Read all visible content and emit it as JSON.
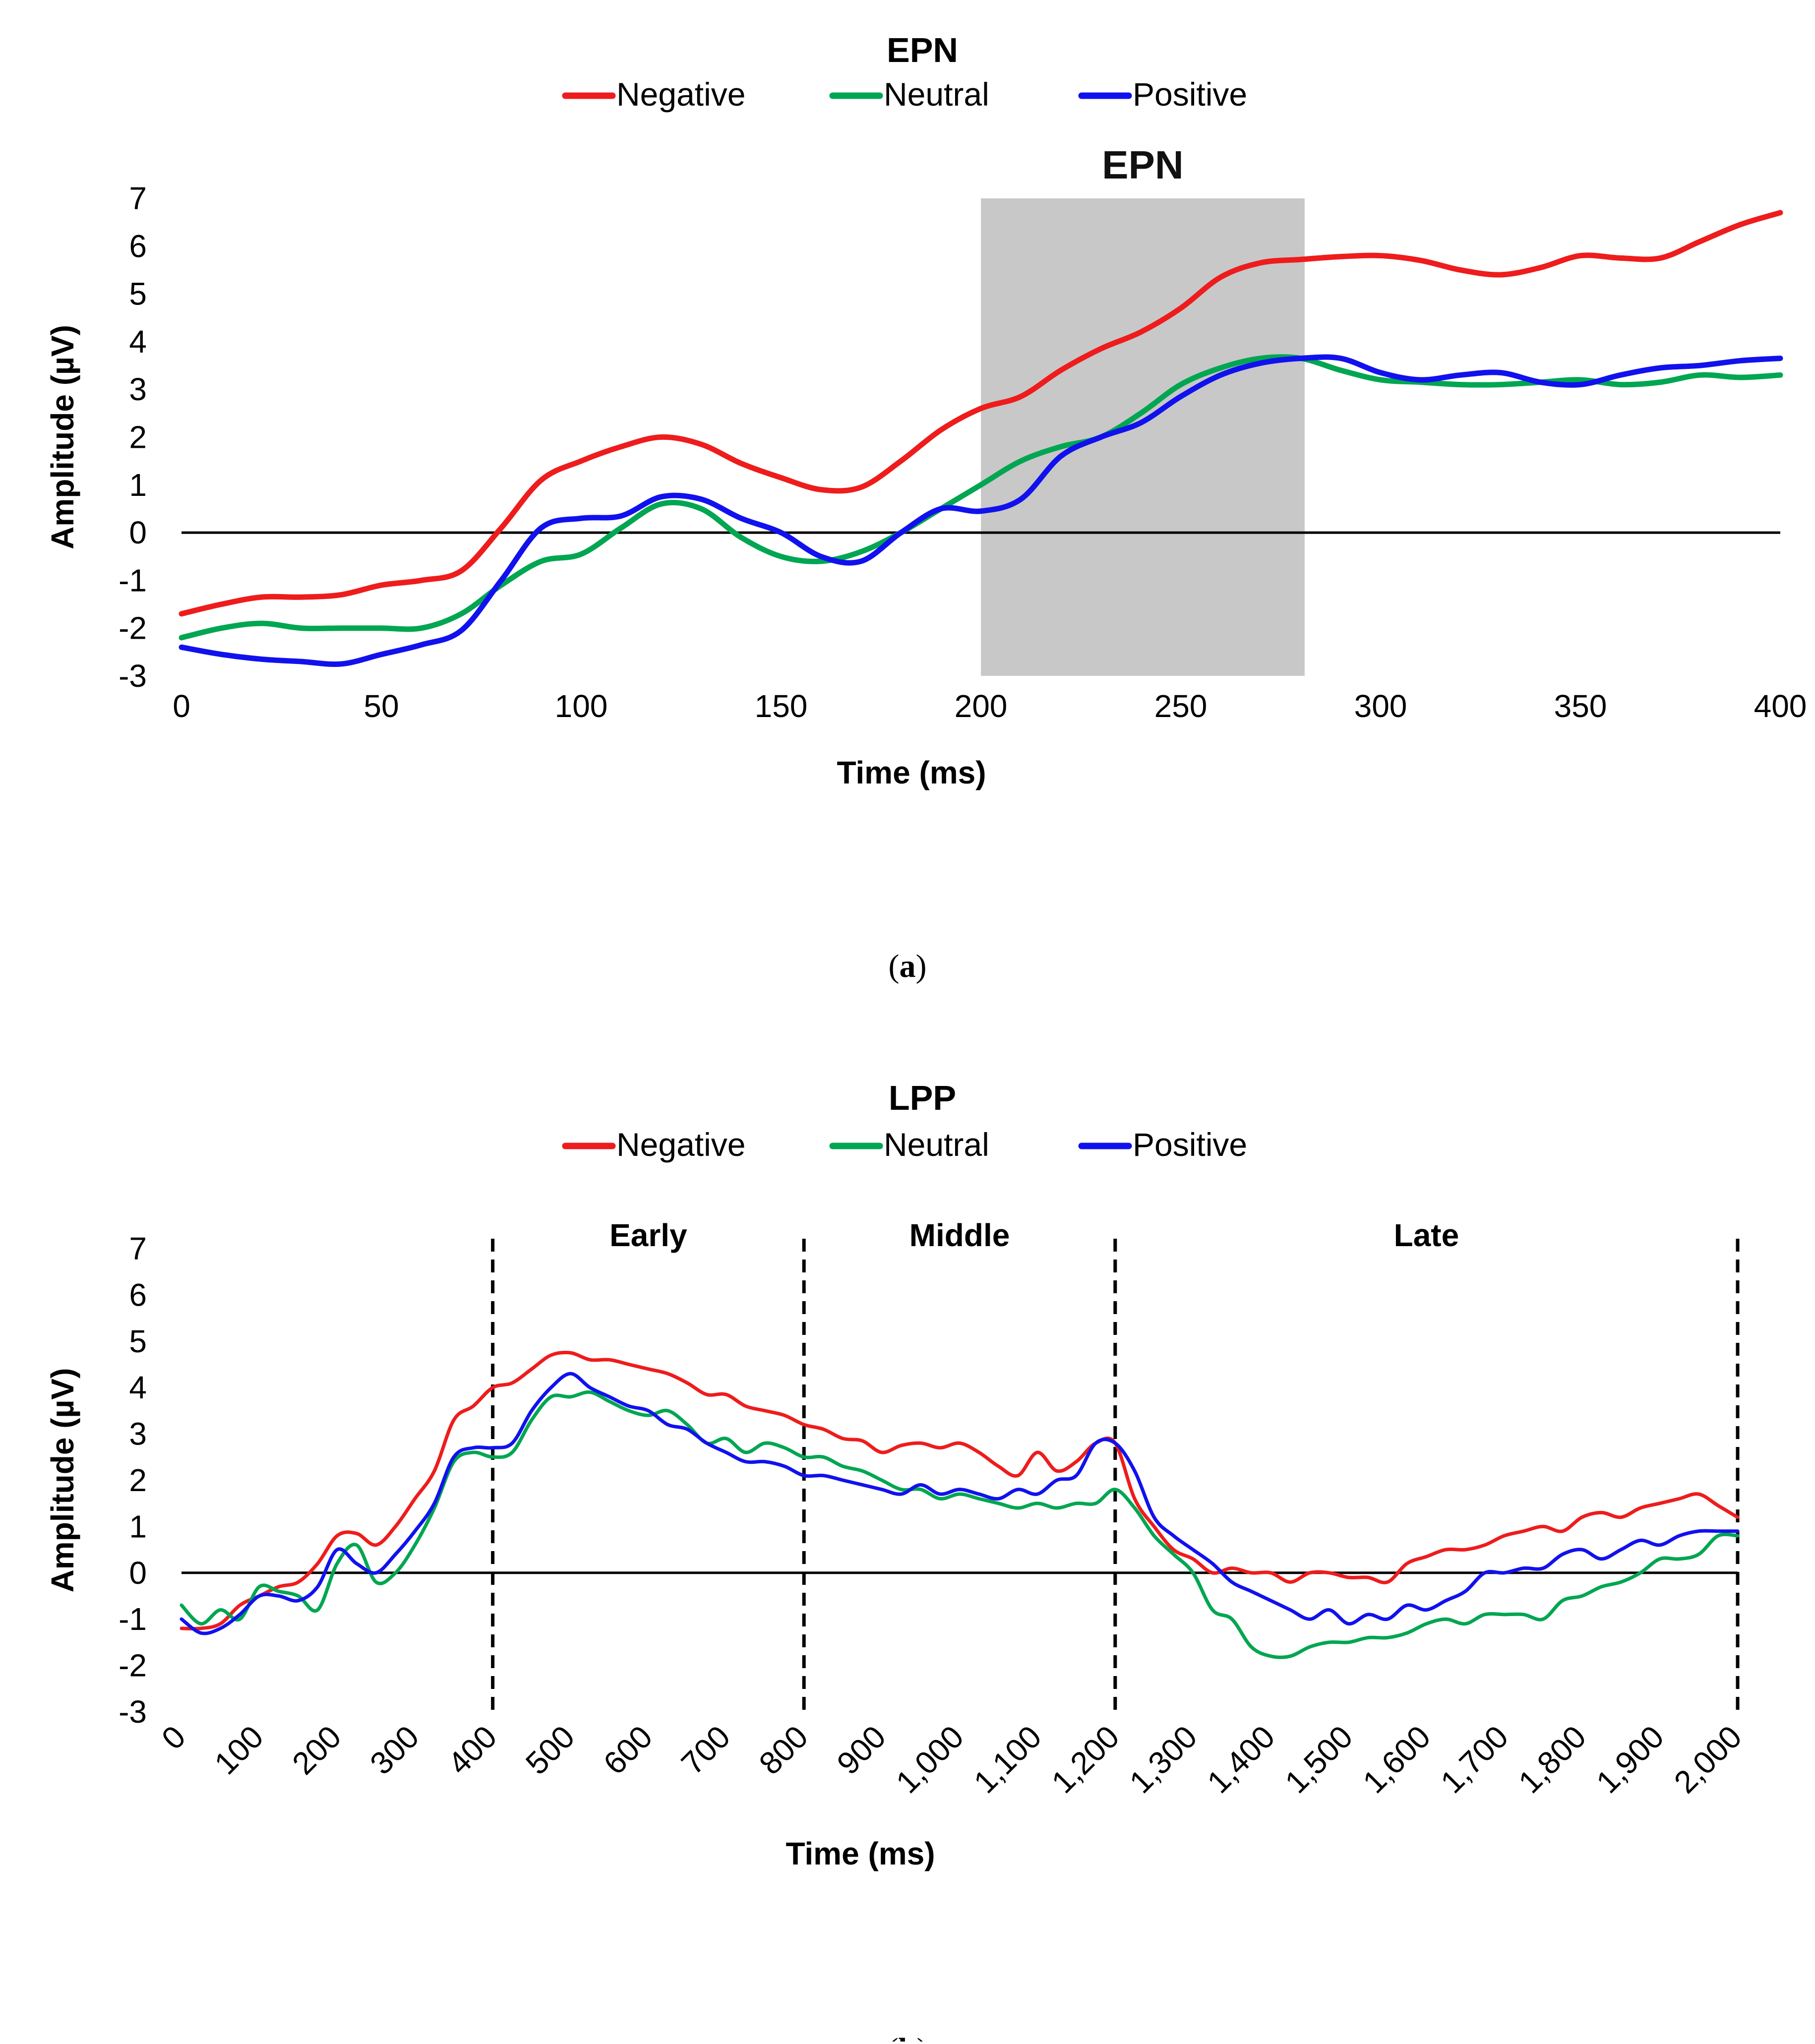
{
  "chart_data": [
    {
      "type": "line",
      "title": "EPN",
      "xlabel": "Time (ms)",
      "ylabel": "Amplitude (µV)",
      "xlim": [
        0,
        400
      ],
      "ylim": [
        -3,
        7
      ],
      "xticks": [
        "0",
        "50",
        "100",
        "150",
        "200",
        "250",
        "300",
        "350",
        "400"
      ],
      "yticks": [
        "7",
        "6",
        "5",
        "4",
        "3",
        "2",
        "1",
        "0",
        "-1",
        "-2",
        "-3"
      ],
      "legend_position": "top-center",
      "shaded_region": {
        "x": [
          200,
          281
        ],
        "label": "EPN"
      },
      "caption": {
        "open": "(",
        "letter": "a",
        "close": ")"
      },
      "series": [
        {
          "name": "Negative",
          "color": "#ee1c1c",
          "x": [
            0,
            10,
            20,
            30,
            40,
            50,
            60,
            70,
            80,
            90,
            100,
            110,
            120,
            130,
            140,
            150,
            160,
            170,
            180,
            190,
            200,
            210,
            220,
            230,
            240,
            250,
            260,
            270,
            280,
            290,
            300,
            310,
            320,
            330,
            340,
            350,
            360,
            370,
            380,
            390,
            400
          ],
          "y": [
            -1.7,
            -1.5,
            -1.35,
            -1.35,
            -1.3,
            -1.1,
            -1.0,
            -0.8,
            0.1,
            1.1,
            1.5,
            1.8,
            2.0,
            1.85,
            1.45,
            1.15,
            0.9,
            0.95,
            1.5,
            2.15,
            2.6,
            2.85,
            3.4,
            3.85,
            4.2,
            4.7,
            5.35,
            5.65,
            5.72,
            5.78,
            5.8,
            5.7,
            5.5,
            5.4,
            5.55,
            5.8,
            5.75,
            5.75,
            6.1,
            6.45,
            6.7
          ]
        },
        {
          "name": "Neutral",
          "color": "#00a651",
          "x": [
            0,
            10,
            20,
            30,
            40,
            50,
            60,
            70,
            80,
            90,
            100,
            110,
            120,
            130,
            140,
            150,
            160,
            170,
            180,
            190,
            200,
            210,
            220,
            230,
            240,
            250,
            260,
            270,
            280,
            290,
            300,
            310,
            320,
            330,
            340,
            350,
            360,
            370,
            380,
            390,
            400
          ],
          "y": [
            -2.2,
            -2.0,
            -1.9,
            -2.0,
            -2.0,
            -2.0,
            -2.0,
            -1.7,
            -1.1,
            -0.6,
            -0.45,
            0.1,
            0.6,
            0.5,
            -0.1,
            -0.5,
            -0.6,
            -0.4,
            0.0,
            0.5,
            1.0,
            1.5,
            1.8,
            2.0,
            2.5,
            3.1,
            3.45,
            3.65,
            3.65,
            3.4,
            3.2,
            3.15,
            3.1,
            3.1,
            3.15,
            3.2,
            3.1,
            3.15,
            3.3,
            3.25,
            3.3
          ]
        },
        {
          "name": "Positive",
          "color": "#1111ee",
          "x": [
            0,
            10,
            20,
            30,
            40,
            50,
            60,
            70,
            80,
            90,
            100,
            110,
            120,
            130,
            140,
            150,
            160,
            170,
            180,
            190,
            200,
            210,
            220,
            230,
            240,
            250,
            260,
            270,
            280,
            290,
            300,
            310,
            320,
            330,
            340,
            350,
            360,
            370,
            380,
            390,
            400
          ],
          "y": [
            -2.4,
            -2.55,
            -2.65,
            -2.7,
            -2.75,
            -2.55,
            -2.35,
            -2.05,
            -1.0,
            0.1,
            0.3,
            0.35,
            0.75,
            0.7,
            0.3,
            0.0,
            -0.5,
            -0.6,
            0.0,
            0.5,
            0.45,
            0.7,
            1.6,
            2.0,
            2.3,
            2.85,
            3.3,
            3.55,
            3.65,
            3.65,
            3.35,
            3.2,
            3.3,
            3.35,
            3.15,
            3.1,
            3.3,
            3.45,
            3.5,
            3.6,
            3.65
          ]
        }
      ]
    },
    {
      "type": "line",
      "title": "LPP",
      "xlabel": "Time (ms)",
      "ylabel": "Amplitude (µV)",
      "xlim": [
        0,
        2000
      ],
      "ylim": [
        -3,
        7
      ],
      "xticks": [
        "0",
        "100",
        "200",
        "300",
        "400",
        "500",
        "600",
        "700",
        "800",
        "900",
        "1,000",
        "1,100",
        "1,200",
        "1,300",
        "1,400",
        "1,500",
        "1,600",
        "1,700",
        "1,800",
        "1,900",
        "2,000"
      ],
      "yticks": [
        "7",
        "6",
        "5",
        "4",
        "3",
        "2",
        "1",
        "0",
        "-1",
        "-2",
        "-3"
      ],
      "legend_position": "top-center",
      "dashed_lines_x": [
        400,
        800,
        1200,
        2000
      ],
      "regions": [
        {
          "label": "Early",
          "x": [
            400,
            800
          ]
        },
        {
          "label": "Middle",
          "x": [
            800,
            1200
          ]
        },
        {
          "label": "Late",
          "x": [
            1200,
            2000
          ]
        }
      ],
      "caption": {
        "open": "(",
        "letter": "b",
        "close": ")"
      },
      "series": [
        {
          "name": "Negative",
          "color": "#ee1c1c",
          "x": [
            0,
            25,
            50,
            75,
            100,
            125,
            150,
            175,
            200,
            225,
            250,
            275,
            300,
            325,
            350,
            375,
            400,
            425,
            450,
            475,
            500,
            525,
            550,
            575,
            600,
            625,
            650,
            675,
            700,
            725,
            750,
            775,
            800,
            825,
            850,
            875,
            900,
            925,
            950,
            975,
            1000,
            1025,
            1050,
            1075,
            1100,
            1125,
            1150,
            1175,
            1200,
            1225,
            1250,
            1275,
            1300,
            1325,
            1350,
            1375,
            1400,
            1425,
            1450,
            1475,
            1500,
            1525,
            1550,
            1575,
            1600,
            1625,
            1650,
            1675,
            1700,
            1725,
            1750,
            1775,
            1800,
            1825,
            1850,
            1875,
            1900,
            1925,
            1950,
            1975,
            2000
          ],
          "y": [
            -1.2,
            -1.2,
            -1.1,
            -0.7,
            -0.5,
            -0.3,
            -0.2,
            0.2,
            0.8,
            0.85,
            0.6,
            1.0,
            1.6,
            2.2,
            3.3,
            3.6,
            4.0,
            4.1,
            4.4,
            4.7,
            4.75,
            4.6,
            4.6,
            4.5,
            4.4,
            4.3,
            4.1,
            3.85,
            3.85,
            3.6,
            3.5,
            3.4,
            3.2,
            3.1,
            2.9,
            2.85,
            2.6,
            2.75,
            2.8,
            2.7,
            2.8,
            2.6,
            2.3,
            2.1,
            2.6,
            2.2,
            2.4,
            2.8,
            2.8,
            1.6,
            1.0,
            0.5,
            0.3,
            0.0,
            0.1,
            0.0,
            0.0,
            -0.2,
            0.0,
            0.0,
            -0.1,
            -0.1,
            -0.2,
            0.2,
            0.35,
            0.5,
            0.5,
            0.6,
            0.8,
            0.9,
            1.0,
            0.9,
            1.2,
            1.3,
            1.2,
            1.4,
            1.5,
            1.6,
            1.7,
            1.45,
            1.2
          ]
        },
        {
          "name": "Neutral",
          "color": "#00a651",
          "x": [
            0,
            25,
            50,
            75,
            100,
            125,
            150,
            175,
            200,
            225,
            250,
            275,
            300,
            325,
            350,
            375,
            400,
            425,
            450,
            475,
            500,
            525,
            550,
            575,
            600,
            625,
            650,
            675,
            700,
            725,
            750,
            775,
            800,
            825,
            850,
            875,
            900,
            925,
            950,
            975,
            1000,
            1025,
            1050,
            1075,
            1100,
            1125,
            1150,
            1175,
            1200,
            1225,
            1250,
            1275,
            1300,
            1325,
            1350,
            1375,
            1400,
            1425,
            1450,
            1475,
            1500,
            1525,
            1550,
            1575,
            1600,
            1625,
            1650,
            1675,
            1700,
            1725,
            1750,
            1775,
            1800,
            1825,
            1850,
            1875,
            1900,
            1925,
            1950,
            1975,
            2000
          ],
          "y": [
            -0.7,
            -1.1,
            -0.8,
            -1.0,
            -0.3,
            -0.4,
            -0.5,
            -0.8,
            0.2,
            0.6,
            -0.2,
            0.0,
            0.6,
            1.4,
            2.4,
            2.6,
            2.5,
            2.6,
            3.3,
            3.8,
            3.8,
            3.9,
            3.7,
            3.5,
            3.4,
            3.5,
            3.2,
            2.8,
            2.9,
            2.6,
            2.8,
            2.7,
            2.5,
            2.5,
            2.3,
            2.2,
            2.0,
            1.8,
            1.8,
            1.6,
            1.7,
            1.6,
            1.5,
            1.4,
            1.5,
            1.4,
            1.5,
            1.5,
            1.8,
            1.4,
            0.8,
            0.4,
            0.0,
            -0.8,
            -1.0,
            -1.6,
            -1.8,
            -1.8,
            -1.6,
            -1.5,
            -1.5,
            -1.4,
            -1.4,
            -1.3,
            -1.1,
            -1.0,
            -1.1,
            -0.9,
            -0.9,
            -0.9,
            -1.0,
            -0.6,
            -0.5,
            -0.3,
            -0.2,
            0.0,
            0.3,
            0.3,
            0.4,
            0.8,
            0.8
          ]
        },
        {
          "name": "Positive",
          "color": "#1111ee",
          "x": [
            0,
            25,
            50,
            75,
            100,
            125,
            150,
            175,
            200,
            225,
            250,
            275,
            300,
            325,
            350,
            375,
            400,
            425,
            450,
            475,
            500,
            525,
            550,
            575,
            600,
            625,
            650,
            675,
            700,
            725,
            750,
            775,
            800,
            825,
            850,
            875,
            900,
            925,
            950,
            975,
            1000,
            1025,
            1050,
            1075,
            1100,
            1125,
            1150,
            1175,
            1200,
            1225,
            1250,
            1275,
            1300,
            1325,
            1350,
            1375,
            1400,
            1425,
            1450,
            1475,
            1500,
            1525,
            1550,
            1575,
            1600,
            1625,
            1650,
            1675,
            1700,
            1725,
            1750,
            1775,
            1800,
            1825,
            1850,
            1875,
            1900,
            1925,
            1950,
            1975,
            2000
          ],
          "y": [
            -1.0,
            -1.3,
            -1.2,
            -0.9,
            -0.5,
            -0.5,
            -0.6,
            -0.3,
            0.5,
            0.2,
            0.0,
            0.4,
            0.9,
            1.5,
            2.5,
            2.7,
            2.7,
            2.8,
            3.5,
            4.0,
            4.3,
            4.0,
            3.8,
            3.6,
            3.5,
            3.2,
            3.1,
            2.8,
            2.6,
            2.4,
            2.4,
            2.3,
            2.1,
            2.1,
            2.0,
            1.9,
            1.8,
            1.7,
            1.9,
            1.7,
            1.8,
            1.7,
            1.6,
            1.8,
            1.7,
            2.0,
            2.1,
            2.8,
            2.8,
            2.2,
            1.2,
            0.8,
            0.5,
            0.2,
            -0.2,
            -0.4,
            -0.6,
            -0.8,
            -1.0,
            -0.8,
            -1.1,
            -0.9,
            -1.0,
            -0.7,
            -0.8,
            -0.6,
            -0.4,
            0.0,
            0.0,
            0.1,
            0.1,
            0.4,
            0.5,
            0.3,
            0.5,
            0.7,
            0.6,
            0.8,
            0.9,
            0.9,
            0.9
          ]
        }
      ]
    }
  ]
}
